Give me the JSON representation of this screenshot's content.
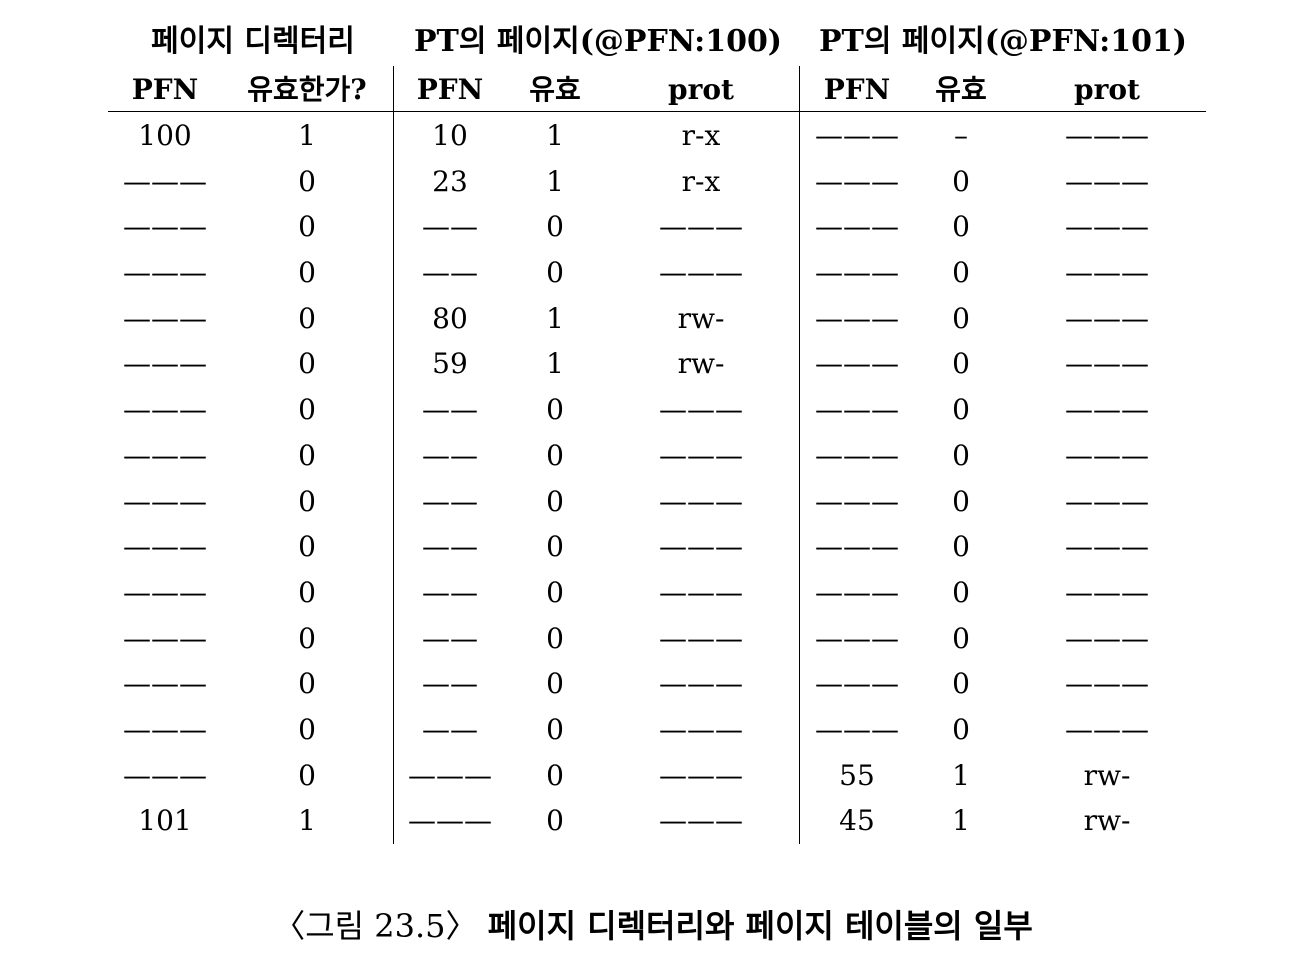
{
  "table": {
    "group_headers": {
      "page_directory": "페이지 디렉터리",
      "pt100": "PT의 페이지(@PFN:100)",
      "pt101": "PT의 페이지(@PFN:101)"
    },
    "columns": [
      "PFN",
      "유효한가?",
      "PFN",
      "유효",
      "prot",
      "PFN",
      "유효",
      "prot"
    ],
    "rows": [
      [
        "100",
        "1",
        "10",
        "1",
        "r-x",
        "———",
        "–",
        "———"
      ],
      [
        "———",
        "0",
        "23",
        "1",
        "r-x",
        "———",
        "0",
        "———"
      ],
      [
        "———",
        "0",
        "——",
        "0",
        "———",
        "———",
        "0",
        "———"
      ],
      [
        "———",
        "0",
        "——",
        "0",
        "———",
        "———",
        "0",
        "———"
      ],
      [
        "———",
        "0",
        "80",
        "1",
        "rw-",
        "———",
        "0",
        "———"
      ],
      [
        "———",
        "0",
        "59",
        "1",
        "rw-",
        "———",
        "0",
        "———"
      ],
      [
        "———",
        "0",
        "——",
        "0",
        "———",
        "———",
        "0",
        "———"
      ],
      [
        "———",
        "0",
        "——",
        "0",
        "———",
        "———",
        "0",
        "———"
      ],
      [
        "———",
        "0",
        "——",
        "0",
        "———",
        "———",
        "0",
        "———"
      ],
      [
        "———",
        "0",
        "——",
        "0",
        "———",
        "———",
        "0",
        "———"
      ],
      [
        "———",
        "0",
        "——",
        "0",
        "———",
        "———",
        "0",
        "———"
      ],
      [
        "———",
        "0",
        "——",
        "0",
        "———",
        "———",
        "0",
        "———"
      ],
      [
        "———",
        "0",
        "——",
        "0",
        "———",
        "———",
        "0",
        "———"
      ],
      [
        "———",
        "0",
        "——",
        "0",
        "———",
        "———",
        "0",
        "———"
      ],
      [
        "———",
        "0",
        "———",
        "0",
        "———",
        "55",
        "1",
        "rw-"
      ],
      [
        "101",
        "1",
        "———",
        "0",
        "———",
        "45",
        "1",
        "rw-"
      ]
    ]
  },
  "caption": {
    "number": "〈그림 23.5〉",
    "title": "페이지 디렉터리와 페이지 테이블의 일부"
  }
}
